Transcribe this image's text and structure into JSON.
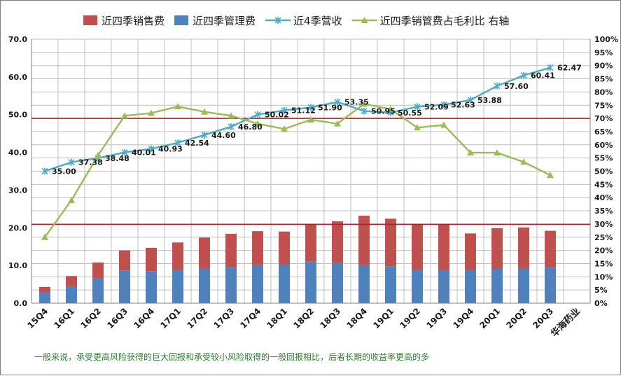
{
  "chart_data": {
    "type": "bar",
    "categories": [
      "15Q4",
      "16Q1",
      "16Q2",
      "16Q3",
      "16Q4",
      "17Q1",
      "17Q2",
      "17Q3",
      "17Q4",
      "18Q1",
      "18Q2",
      "18Q3",
      "18Q4",
      "19Q1",
      "19Q2",
      "19Q3",
      "19Q4",
      "20Q1",
      "20Q2",
      "20Q3"
    ],
    "series": [
      {
        "name": "近四季销售费",
        "kind": "stacked-bar",
        "axis": "left",
        "color": "#c0504d",
        "values": [
          1.5,
          2.7,
          4.2,
          5.3,
          6.2,
          7.2,
          8.1,
          8.9,
          9.0,
          8.8,
          10.0,
          11.0,
          13.1,
          12.6,
          12.1,
          12.0,
          9.6,
          10.8,
          10.8,
          9.6
        ]
      },
      {
        "name": "近四季管理费",
        "kind": "stacked-bar",
        "axis": "left",
        "color": "#4f81bd",
        "values": [
          2.8,
          4.5,
          6.6,
          8.7,
          8.5,
          8.9,
          9.3,
          9.5,
          10.1,
          10.2,
          11.0,
          10.7,
          10.1,
          9.8,
          8.9,
          8.9,
          8.9,
          9.1,
          9.3,
          9.6
        ]
      },
      {
        "name": "近4季营收",
        "kind": "line",
        "axis": "left",
        "color": "#4bacc6",
        "values": [
          35.0,
          37.38,
          38.48,
          40.01,
          40.93,
          42.54,
          44.6,
          46.8,
          50.02,
          51.12,
          51.9,
          53.35,
          50.95,
          50.55,
          52.09,
          52.63,
          53.88,
          57.6,
          60.41,
          62.47
        ],
        "labels": [
          "35.00",
          "37.38",
          "38.48",
          "40.01",
          "40.93",
          "42.54",
          "44.60",
          "46.80",
          "50.02",
          "51.12",
          "51.90",
          "53.35",
          "50.95",
          "50.55",
          "52.09",
          "52.63",
          "53.88",
          "57.60",
          "60.41",
          "62.47"
        ]
      },
      {
        "name": "近四季销管费占毛利比 右轴",
        "kind": "line",
        "axis": "right",
        "color": "#9bbb59",
        "values": [
          0.25,
          0.39,
          0.56,
          0.71,
          0.72,
          0.745,
          0.725,
          0.71,
          0.68,
          0.66,
          0.695,
          0.68,
          0.755,
          0.735,
          0.665,
          0.675,
          0.57,
          0.57,
          0.535,
          0.485
        ]
      }
    ],
    "y_left": {
      "min": 0,
      "max": 70,
      "step": 10,
      "tick_labels": [
        "0.0",
        "10.0",
        "20.0",
        "30.0",
        "40.0",
        "50.0",
        "60.0",
        "70.0"
      ]
    },
    "y_right": {
      "min": 0,
      "max": 1.0,
      "step": 0.05,
      "tick_labels": [
        "0%",
        "5%",
        "10%",
        "15%",
        "20%",
        "25%",
        "30%",
        "35%",
        "40%",
        "45%",
        "50%",
        "55%",
        "60%",
        "65%",
        "70%",
        "75%",
        "80%",
        "85%",
        "90%",
        "95%",
        "100%"
      ]
    },
    "reference_lines": [
      {
        "axis": "left",
        "value": 20.9,
        "color": "#a0272a"
      },
      {
        "axis": "left",
        "value": 49.0,
        "color": "#a0272a"
      }
    ],
    "grid": true,
    "legend_position": "top"
  },
  "footnote": "一般来说，承受更高风险获得的巨大回报和承受较小风险取得的一般回报相比，后者长期的收益率更高的多",
  "source_label": "华海药业"
}
